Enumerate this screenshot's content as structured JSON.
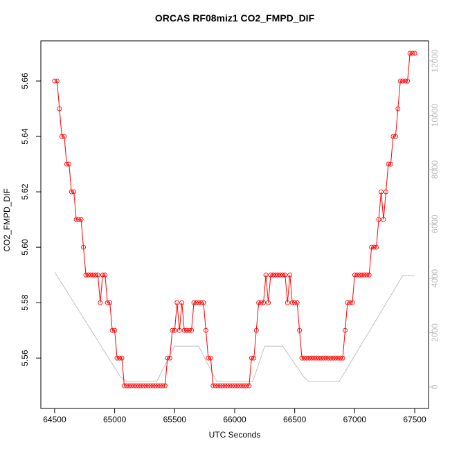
{
  "chart_data": {
    "type": "line",
    "title": "ORCAS RF08miz1 CO2_FMPD_DIF",
    "x_label": "UTC Seconds",
    "y_label": "CO2_FMPD_DIF",
    "xlim": [
      64385,
      67615
    ],
    "ylim": [
      5.5418,
      5.6745
    ],
    "y2lim": [
      -790,
      12739
    ],
    "xticks": [
      64500,
      65000,
      65500,
      66000,
      66500,
      67000,
      67500
    ],
    "yticks": [
      5.56,
      5.58,
      {
        "value": 5.6,
        "label": "5.60"
      },
      5.62,
      5.64,
      5.66
    ],
    "y2ticks": [
      0,
      2000,
      4000,
      6000,
      8000,
      10000,
      12000
    ],
    "series": [
      {
        "color": "#ff0000",
        "markers": true,
        "x": [
          64500,
          64520,
          64540,
          64560,
          64580,
          64600,
          64620,
          64640,
          64660,
          64680,
          64700,
          64720,
          64740,
          64760,
          64780,
          64800,
          64820,
          64840,
          64860,
          64880,
          64900,
          64920,
          64940,
          64960,
          64980,
          65000,
          65020,
          65040,
          65060,
          65080,
          65100,
          65120,
          65140,
          65160,
          65180,
          65200,
          65220,
          65240,
          65260,
          65280,
          65300,
          65320,
          65340,
          65360,
          65380,
          65400,
          65420,
          65440,
          65460,
          65480,
          65500,
          65520,
          65540,
          65560,
          65580,
          65600,
          65620,
          65640,
          65660,
          65680,
          65700,
          65720,
          65740,
          65760,
          65780,
          65800,
          65820,
          65840,
          65860,
          65880,
          65900,
          65920,
          65940,
          65960,
          65980,
          66000,
          66020,
          66040,
          66060,
          66080,
          66100,
          66120,
          66140,
          66160,
          66180,
          66200,
          66220,
          66240,
          66260,
          66280,
          66300,
          66320,
          66340,
          66360,
          66380,
          66400,
          66420,
          66440,
          66460,
          66480,
          66500,
          66520,
          66540,
          66560,
          66580,
          66600,
          66620,
          66640,
          66660,
          66680,
          66700,
          66720,
          66740,
          66760,
          66780,
          66800,
          66820,
          66840,
          66860,
          66880,
          66900,
          66920,
          66940,
          66960,
          66980,
          67000,
          67020,
          67040,
          67060,
          67080,
          67100,
          67120,
          67140,
          67160,
          67180,
          67200,
          67220,
          67240,
          67260,
          67280,
          67300,
          67320,
          67340,
          67360,
          67380,
          67400,
          67420,
          67440,
          67460,
          67480,
          67500
        ],
        "values": [
          5.66,
          5.66,
          5.65,
          5.64,
          5.64,
          5.63,
          5.63,
          5.62,
          5.62,
          5.61,
          5.61,
          5.61,
          5.6,
          5.59,
          5.59,
          5.59,
          5.59,
          5.59,
          5.59,
          5.58,
          5.59,
          5.59,
          5.58,
          5.58,
          5.57,
          5.57,
          5.56,
          5.56,
          5.56,
          5.55,
          5.55,
          5.55,
          5.55,
          5.55,
          5.55,
          5.55,
          5.55,
          5.55,
          5.55,
          5.55,
          5.55,
          5.55,
          5.55,
          5.55,
          5.55,
          5.55,
          5.55,
          5.56,
          5.56,
          5.57,
          5.57,
          5.58,
          5.57,
          5.58,
          5.57,
          5.57,
          5.57,
          5.57,
          5.58,
          5.58,
          5.58,
          5.58,
          5.58,
          5.57,
          5.56,
          5.56,
          5.55,
          5.55,
          5.55,
          5.55,
          5.55,
          5.55,
          5.55,
          5.55,
          5.55,
          5.55,
          5.55,
          5.55,
          5.55,
          5.55,
          5.55,
          5.55,
          5.56,
          5.56,
          5.57,
          5.58,
          5.58,
          5.58,
          5.59,
          5.58,
          5.59,
          5.59,
          5.59,
          5.59,
          5.59,
          5.59,
          5.59,
          5.58,
          5.59,
          5.58,
          5.58,
          5.58,
          5.57,
          5.56,
          5.56,
          5.56,
          5.56,
          5.56,
          5.56,
          5.56,
          5.56,
          5.56,
          5.56,
          5.56,
          5.56,
          5.56,
          5.56,
          5.56,
          5.56,
          5.56,
          5.56,
          5.57,
          5.58,
          5.58,
          5.58,
          5.59,
          5.59,
          5.59,
          5.59,
          5.59,
          5.59,
          5.59,
          5.6,
          5.6,
          5.6,
          5.61,
          5.62,
          5.61,
          5.62,
          5.63,
          5.63,
          5.64,
          5.64,
          5.65,
          5.66,
          5.66,
          5.66,
          5.66,
          5.67,
          5.67,
          5.67
        ]
      },
      {
        "color": "#c0c0c0",
        "axis": "y2",
        "markers": false,
        "x": [
          64500,
          65050,
          65100,
          65350,
          65500,
          65700,
          65850,
          66150,
          66250,
          66400,
          66580,
          66620,
          66870,
          67400,
          67500
        ],
        "values": [
          4230,
          360,
          200,
          200,
          1500,
          1500,
          200,
          200,
          1500,
          1500,
          350,
          200,
          200,
          4100,
          4100
        ]
      }
    ]
  }
}
